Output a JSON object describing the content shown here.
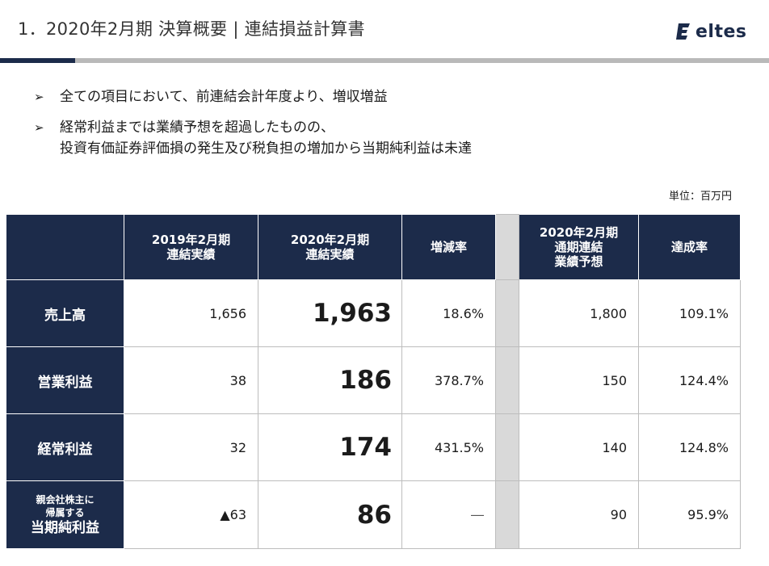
{
  "header": {
    "title": "1．2020年2月期  決算概要  |  連結損益計算書",
    "logo_text": "eltes",
    "brand_color": "#1c2b4a"
  },
  "bullets": [
    {
      "mark": "➢",
      "lines": [
        "全ての項目において、前連結会計年度より、増収増益"
      ]
    },
    {
      "mark": "➢",
      "lines": [
        "経常利益までは業績予想を超過したものの、",
        "投資有価証券評価損の発生及び税負担の増加から当期純利益は未達"
      ]
    }
  ],
  "unit_label": "単位：百万円",
  "table": {
    "columns": [
      {
        "lines": [
          "2019年2月期",
          "連結実績"
        ]
      },
      {
        "lines": [
          "2020年2月期",
          "連結実績"
        ]
      },
      {
        "lines": [
          "増減率"
        ]
      },
      {
        "lines": [
          ""
        ]
      },
      {
        "lines": [
          "2020年2月期",
          "通期連結",
          "業績予想"
        ]
      },
      {
        "lines": [
          "達成率"
        ]
      }
    ],
    "rows": [
      {
        "label": "売上高",
        "fy2019": "1,656",
        "fy2020": "1,963",
        "change": "18.6%",
        "forecast": "1,800",
        "achievement": "109.1%"
      },
      {
        "label": "営業利益",
        "fy2019": "38",
        "fy2020": "186",
        "change": "378.7%",
        "forecast": "150",
        "achievement": "124.4%"
      },
      {
        "label": "経常利益",
        "fy2019": "32",
        "fy2020": "174",
        "change": "431.5%",
        "forecast": "140",
        "achievement": "124.8%"
      },
      {
        "label_small": [
          "親会社株主に",
          "帰属する"
        ],
        "label": "当期純利益",
        "fy2019": "▲63",
        "fy2020": "86",
        "change": "―",
        "forecast": "90",
        "achievement": "95.9%"
      }
    ]
  }
}
